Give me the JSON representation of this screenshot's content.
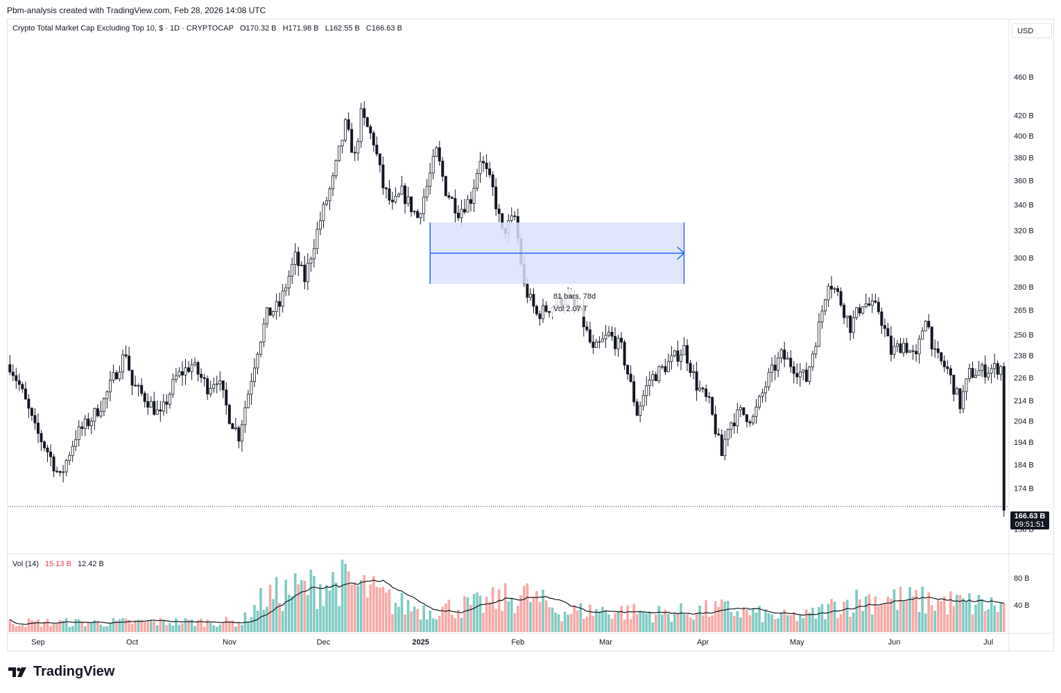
{
  "credit": "Pbm-analysis created with TradingView.com, Feb 28, 2026 14:08 UTC",
  "brand": "TradingView",
  "legend": {
    "symbol": "Crypto Total Market Cap Excluding Top 10, $ · 1D · CRYPTOCAP",
    "open": "O170.32 B",
    "high": "H171.98 B",
    "low": "L162.55 B",
    "close": "C166.63 B"
  },
  "currency": "USD",
  "price_tag": {
    "value": "166.63 B",
    "countdown": "09:51:51"
  },
  "measure_label": {
    "line1": "81 bars, 78d",
    "line2": "Vol 2.07 T"
  },
  "vol_legend": {
    "name": "Vol (14)",
    "value": "15.13 B",
    "ma": "12.42 B"
  },
  "colors": {
    "up": "#26a69a",
    "down": "#ef5350",
    "vol_up": "#80cbc4",
    "vol_down": "#f7a9a7",
    "range_fill": "#dbe3fb",
    "range_line": "#2962ff"
  },
  "chart_data": [
    {
      "type": "candlestick",
      "title": "Crypto Total Market Cap Excluding Top 10",
      "y_scale": "log",
      "y_ticks": [
        "460 B",
        "420 B",
        "400 B",
        "380 B",
        "360 B",
        "340 B",
        "320 B",
        "300 B",
        "280 B",
        "265 B",
        "250 B",
        "238 B",
        "226 B",
        "214 B",
        "204 B",
        "194 B",
        "184 B",
        "174 B",
        "158 B"
      ],
      "x_ticks": [
        "Sep",
        "Oct",
        "Nov",
        "Dec",
        "2025",
        "Feb",
        "Mar",
        "Apr",
        "May",
        "Jun",
        "Jul"
      ],
      "x_range": [
        "2024-08-23",
        "2025-07-06"
      ],
      "last_close": 166.63,
      "anchors": [
        [
          "2024-08-23",
          233
        ],
        [
          "2024-08-26",
          222
        ],
        [
          "2024-08-31",
          200
        ],
        [
          "2024-09-04",
          190
        ],
        [
          "2024-09-08",
          178
        ],
        [
          "2024-09-13",
          197
        ],
        [
          "2024-09-18",
          205
        ],
        [
          "2024-09-22",
          214
        ],
        [
          "2024-09-27",
          233
        ],
        [
          "2024-09-29",
          240
        ],
        [
          "2024-10-01",
          222
        ],
        [
          "2024-10-06",
          214
        ],
        [
          "2024-10-10",
          206
        ],
        [
          "2024-10-15",
          226
        ],
        [
          "2024-10-20",
          233
        ],
        [
          "2024-10-25",
          221
        ],
        [
          "2024-10-28",
          226
        ],
        [
          "2024-11-01",
          206
        ],
        [
          "2024-11-04",
          197
        ],
        [
          "2024-11-07",
          218
        ],
        [
          "2024-11-10",
          242
        ],
        [
          "2024-11-13",
          262
        ],
        [
          "2024-11-17",
          268
        ],
        [
          "2024-11-22",
          300
        ],
        [
          "2024-11-25",
          285
        ],
        [
          "2024-11-30",
          328
        ],
        [
          "2024-12-04",
          360
        ],
        [
          "2024-12-08",
          410
        ],
        [
          "2024-12-11",
          380
        ],
        [
          "2024-12-13",
          420
        ],
        [
          "2024-12-17",
          395
        ],
        [
          "2024-12-20",
          355
        ],
        [
          "2024-12-23",
          338
        ],
        [
          "2024-12-26",
          350
        ],
        [
          "2024-12-31",
          330
        ],
        [
          "2025-01-03",
          355
        ],
        [
          "2025-01-06",
          385
        ],
        [
          "2025-01-09",
          352
        ],
        [
          "2025-01-13",
          335
        ],
        [
          "2025-01-17",
          345
        ],
        [
          "2025-01-20",
          380
        ],
        [
          "2025-01-24",
          352
        ],
        [
          "2025-01-27",
          318
        ],
        [
          "2025-01-31",
          330
        ],
        [
          "2025-02-03",
          280
        ],
        [
          "2025-02-07",
          262
        ],
        [
          "2025-02-12",
          268
        ],
        [
          "2025-02-17",
          272
        ],
        [
          "2025-02-21",
          262
        ],
        [
          "2025-02-25",
          240
        ],
        [
          "2025-03-02",
          250
        ],
        [
          "2025-03-06",
          242
        ],
        [
          "2025-03-11",
          208
        ],
        [
          "2025-03-15",
          225
        ],
        [
          "2025-03-20",
          232
        ],
        [
          "2025-03-26",
          242
        ],
        [
          "2025-03-30",
          222
        ],
        [
          "2025-04-03",
          212
        ],
        [
          "2025-04-07",
          188
        ],
        [
          "2025-04-09",
          202
        ],
        [
          "2025-04-13",
          208
        ],
        [
          "2025-04-17",
          205
        ],
        [
          "2025-04-22",
          226
        ],
        [
          "2025-04-26",
          238
        ],
        [
          "2025-04-30",
          232
        ],
        [
          "2025-05-04",
          225
        ],
        [
          "2025-05-08",
          255
        ],
        [
          "2025-05-11",
          285
        ],
        [
          "2025-05-14",
          275
        ],
        [
          "2025-05-18",
          255
        ],
        [
          "2025-05-22",
          270
        ],
        [
          "2025-05-27",
          265
        ],
        [
          "2025-05-31",
          240
        ],
        [
          "2025-06-04",
          245
        ],
        [
          "2025-06-08",
          236
        ],
        [
          "2025-06-11",
          262
        ],
        [
          "2025-06-14",
          238
        ],
        [
          "2025-06-18",
          230
        ],
        [
          "2025-06-22",
          212
        ],
        [
          "2025-06-25",
          228
        ],
        [
          "2025-06-30",
          230
        ],
        [
          "2025-07-06",
          232
        ]
      ],
      "range_box": {
        "from": "2025-01-04",
        "to": "2025-03-26",
        "low": 282,
        "high": 326
      }
    },
    {
      "type": "bar",
      "title": "Vol (14)",
      "y_ticks": [
        "80 B",
        "40 B"
      ],
      "ma_period": 14,
      "anchors": [
        [
          "2024-08-23",
          14
        ],
        [
          "2024-09-15",
          14
        ],
        [
          "2024-10-10",
          15
        ],
        [
          "2024-11-05",
          15
        ],
        [
          "2024-11-12",
          50
        ],
        [
          "2024-11-20",
          60
        ],
        [
          "2024-12-06",
          75
        ],
        [
          "2024-12-15",
          62
        ],
        [
          "2024-12-24",
          42
        ],
        [
          "2025-01-03",
          33
        ],
        [
          "2025-01-20",
          40
        ],
        [
          "2025-01-27",
          48
        ],
        [
          "2025-02-03",
          55
        ],
        [
          "2025-02-15",
          30
        ],
        [
          "2025-03-01",
          32
        ],
        [
          "2025-03-20",
          27
        ],
        [
          "2025-04-08",
          34
        ],
        [
          "2025-04-25",
          22
        ],
        [
          "2025-05-05",
          24
        ],
        [
          "2025-05-15",
          42
        ],
        [
          "2025-05-25",
          50
        ],
        [
          "2025-06-10",
          46
        ],
        [
          "2025-06-30",
          40
        ],
        [
          "2025-07-06",
          38
        ]
      ]
    }
  ]
}
